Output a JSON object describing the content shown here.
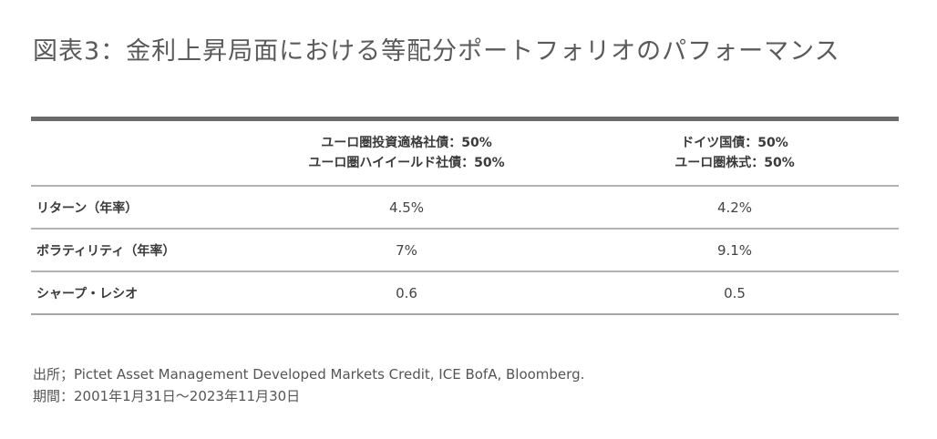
{
  "title": "図表3：金利上昇局面における等配分ポートフォリオのパフォーマンス",
  "table": {
    "columns": [
      {
        "line1": "ユーロ圏投資適格社債：50%",
        "line2": "ユーロ圏ハイイールド社債：50%"
      },
      {
        "line1": "ドイツ国債：50%",
        "line2": "ユーロ圏株式：50%"
      }
    ],
    "rows": [
      {
        "label": "リターン（年率）",
        "a": "4.5%",
        "b": "4.2%"
      },
      {
        "label": "ボラティリティ（年率）",
        "a": "7%",
        "b": "9.1%"
      },
      {
        "label": "シャープ・レシオ",
        "a": "0.6",
        "b": "0.5"
      }
    ]
  },
  "notes": {
    "source": "出所；Pictet Asset Management Developed Markets Credit, ICE BofA, Bloomberg.",
    "period": "期間：2001年1月31日～2023年11月30日"
  }
}
